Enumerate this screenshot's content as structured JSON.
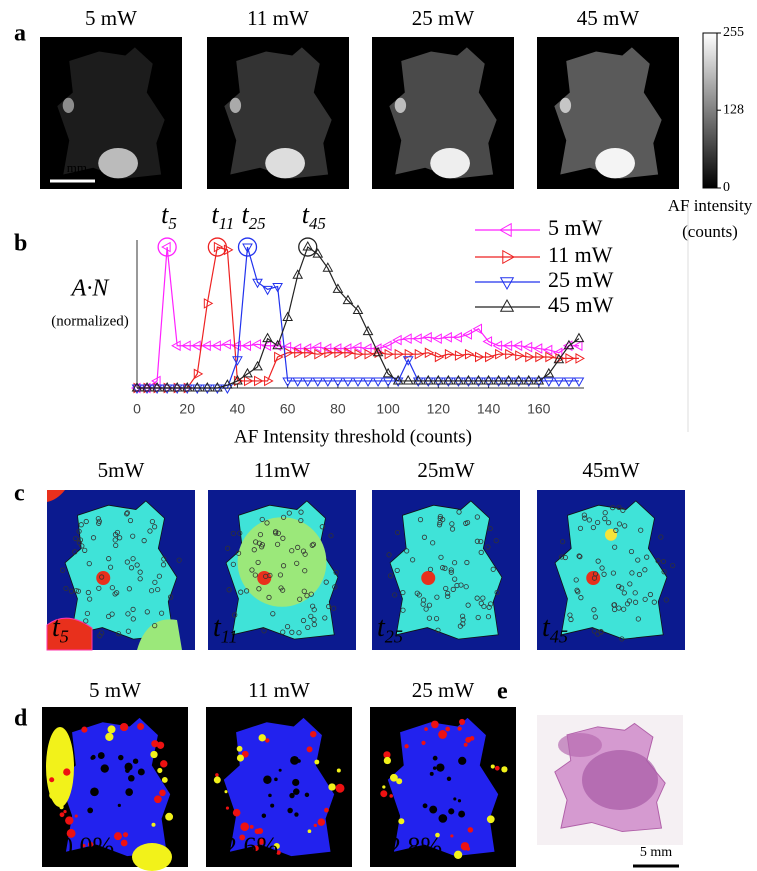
{
  "panels": {
    "a": {
      "label": "a",
      "titles": [
        "5 mW",
        "11 mW",
        "25 mW",
        "45 mW"
      ],
      "scale_bar": "5 mm",
      "colorbar": {
        "lim": [
          0,
          255
        ],
        "ticks": [
          0,
          128,
          255
        ],
        "title": "AF intensity",
        "subtitle": "(counts)"
      }
    },
    "b": {
      "label": "b"
    },
    "c": {
      "label": "c",
      "titles": [
        "5mW",
        "11mW",
        "25mW",
        "45mW"
      ],
      "corner_labels": [
        {
          "text": "t",
          "subscript": "5"
        },
        {
          "text": "t",
          "subscript": "11"
        },
        {
          "text": "t",
          "subscript": "25"
        },
        {
          "text": "t",
          "subscript": "45"
        }
      ]
    },
    "d": {
      "label": "d",
      "titles": [
        "5 mW",
        "11 mW",
        "25 mW"
      ],
      "accuracy": [
        "90.0%",
        "82.6%",
        "92.8%"
      ]
    },
    "e": {
      "label": "e",
      "scale_bar": "5 mm"
    }
  },
  "chart_data": {
    "type": "line",
    "x_label": "AF Intensity threshold (counts)",
    "y_label": "A·N",
    "y_label_note": "(normalized)",
    "x": [
      0,
      4,
      8,
      12,
      16,
      20,
      24,
      28,
      32,
      36,
      40,
      44,
      48,
      52,
      56,
      60,
      64,
      68,
      72,
      76,
      80,
      84,
      88,
      92,
      96,
      100,
      104,
      108,
      112,
      116,
      120,
      124,
      128,
      132,
      136,
      140,
      144,
      148,
      152,
      156,
      160,
      164,
      168,
      172,
      176
    ],
    "series": [
      {
        "name": "5 mW",
        "color": "#ff22ff",
        "marker": "left",
        "peak_label": {
          "text": "t",
          "subscript": "5"
        },
        "values": [
          0,
          0,
          0.05,
          1,
          0.3,
          0.3,
          0.3,
          0.3,
          0.3,
          0.31,
          0.3,
          0.3,
          0.31,
          0.3,
          0.3,
          0.29,
          0.28,
          0.28,
          0.29,
          0.28,
          0.28,
          0.28,
          0.29,
          0.28,
          0.28,
          0.3,
          0.34,
          0.35,
          0.35,
          0.36,
          0.35,
          0.36,
          0.36,
          0.38,
          0.42,
          0.33,
          0.3,
          0.3,
          0.3,
          0.29,
          0.28,
          0.27,
          0.25,
          0.3,
          0.3
        ]
      },
      {
        "name": "11 mW",
        "color": "#ee2222",
        "marker": "right",
        "peak_label": {
          "text": "t",
          "subscript": "11"
        },
        "values": [
          0,
          0,
          0,
          0,
          0,
          0,
          0.1,
          0.6,
          1,
          0.98,
          0.05,
          0.05,
          0.05,
          0.05,
          0.22,
          0.25,
          0.25,
          0.25,
          0.24,
          0.25,
          0.25,
          0.25,
          0.24,
          0.24,
          0.25,
          0.24,
          0.24,
          0.24,
          0.24,
          0.25,
          0.22,
          0.24,
          0.23,
          0.24,
          0.22,
          0.22,
          0.24,
          0.24,
          0.23,
          0.22,
          0.22,
          0.22,
          0.21,
          0.21,
          0.21
        ]
      },
      {
        "name": "25 mW",
        "color": "#2233ee",
        "marker": "down",
        "peak_label": {
          "text": "t",
          "subscript": "25"
        },
        "values": [
          0,
          0,
          0,
          0,
          0,
          0,
          0,
          0,
          0,
          0,
          0.2,
          1,
          0.75,
          0.7,
          0.72,
          0.05,
          0.05,
          0.05,
          0.05,
          0.05,
          0.05,
          0.05,
          0.05,
          0.05,
          0.05,
          0.05,
          0.05,
          0.2,
          0.05,
          0.05,
          0.05,
          0.05,
          0.05,
          0.05,
          0.05,
          0.05,
          0.05,
          0.05,
          0.05,
          0.05,
          0.05,
          0.05,
          0.05,
          0.05,
          0.05
        ]
      },
      {
        "name": "45 mW",
        "color": "#222222",
        "marker": "up",
        "peak_label": {
          "text": "t",
          "subscript": "45"
        },
        "values": [
          0,
          0,
          0,
          0,
          0,
          0,
          0,
          0,
          0,
          0.02,
          0.05,
          0.1,
          0.15,
          0.35,
          0.3,
          0.5,
          0.8,
          1,
          0.95,
          0.85,
          0.7,
          0.62,
          0.55,
          0.4,
          0.25,
          0.1,
          0.05,
          0.05,
          0.05,
          0.05,
          0.05,
          0.05,
          0.05,
          0.05,
          0.05,
          0.05,
          0.05,
          0.05,
          0.05,
          0.05,
          0.05,
          0.1,
          0.2,
          0.3,
          0.35
        ]
      }
    ],
    "xlim": [
      0,
      180
    ],
    "xticks": [
      0,
      20,
      40,
      60,
      80,
      100,
      120,
      140,
      160
    ],
    "ylim": [
      0,
      1.05
    ],
    "legend": "upper right"
  }
}
